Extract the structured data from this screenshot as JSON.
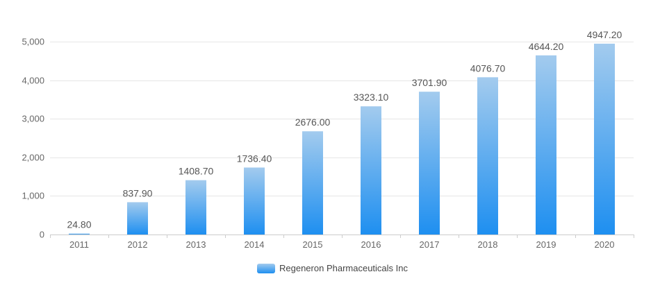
{
  "chart_data": {
    "type": "bar",
    "categories": [
      "2011",
      "2012",
      "2013",
      "2014",
      "2015",
      "2016",
      "2017",
      "2018",
      "2019",
      "2020"
    ],
    "series": [
      {
        "name": "Regeneron Pharmaceuticals Inc",
        "values": [
          24.8,
          837.9,
          1408.7,
          1736.4,
          2676.0,
          3323.1,
          3701.9,
          4076.7,
          4644.2,
          4947.2
        ],
        "labels": [
          "24.80",
          "837.90",
          "1408.70",
          "1736.40",
          "2676.00",
          "3323.10",
          "3701.90",
          "4076.70",
          "4644.20",
          "4947.20"
        ]
      }
    ],
    "yticks": [
      0,
      1000,
      2000,
      3000,
      4000,
      5000
    ],
    "ytick_labels": [
      "0",
      "1,000",
      "2,000",
      "3,000",
      "4,000",
      "5,000"
    ],
    "ylim": [
      0,
      5000
    ],
    "title": "",
    "xlabel": "",
    "ylabel": "",
    "grid": true,
    "legend_position": "bottom-center",
    "colors": {
      "bar_top": "#a3cbee",
      "bar_bottom": "#1e8ff0",
      "grid": "#e6e6e6"
    }
  }
}
